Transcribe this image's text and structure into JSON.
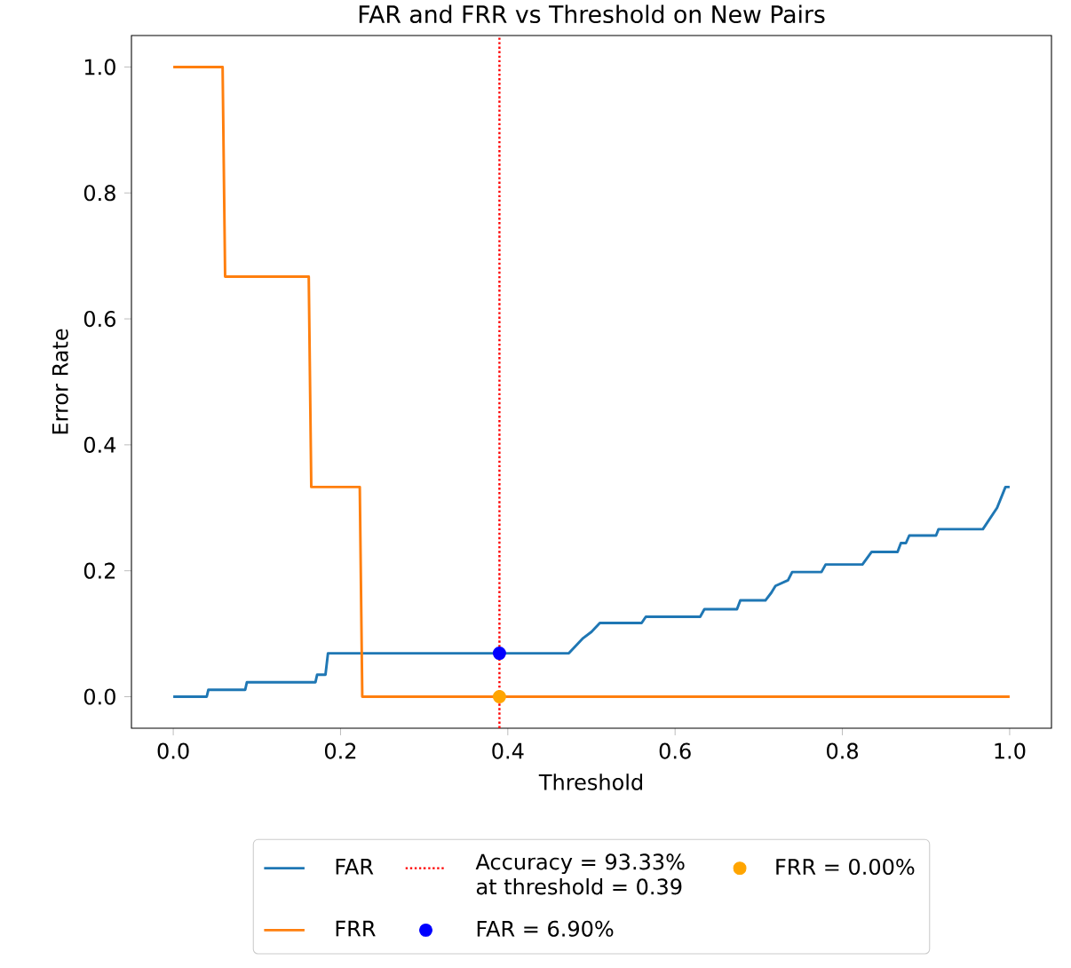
{
  "chart_data": {
    "type": "line",
    "title": "FAR and FRR vs Threshold on New Pairs",
    "xlabel": "Threshold",
    "ylabel": "Error Rate",
    "xlim": [
      -0.05,
      1.05
    ],
    "ylim": [
      -0.05,
      1.05
    ],
    "xticks": [
      {
        "value": 0,
        "label": "0.0"
      },
      {
        "value": 0.2,
        "label": "0.2"
      },
      {
        "value": 0.4,
        "label": "0.4"
      },
      {
        "value": 0.6,
        "label": "0.6"
      },
      {
        "value": 0.8,
        "label": "0.8"
      },
      {
        "value": 1,
        "label": "1.0"
      }
    ],
    "yticks": [
      {
        "value": 0,
        "label": "0.0"
      },
      {
        "value": 0.2,
        "label": "0.2"
      },
      {
        "value": 0.4,
        "label": "0.4"
      },
      {
        "value": 0.6,
        "label": "0.6"
      },
      {
        "value": 0.8,
        "label": "0.8"
      },
      {
        "value": 1,
        "label": "1.0"
      }
    ],
    "grid": false,
    "legend": "bottom",
    "series": [
      {
        "name": "FAR",
        "color": "#1f77b4",
        "x": [
          0,
          0.04,
          0.042,
          0.086,
          0.088,
          0.17,
          0.172,
          0.182,
          0.185,
          0.473,
          0.48,
          0.49,
          0.5,
          0.51,
          0.56,
          0.565,
          0.63,
          0.635,
          0.674,
          0.678,
          0.708,
          0.715,
          0.72,
          0.735,
          0.74,
          0.775,
          0.78,
          0.824,
          0.83,
          0.835,
          0.866,
          0.87,
          0.876,
          0.88,
          0.912,
          0.915,
          0.968,
          0.985,
          0.995,
          1.0
        ],
        "values": [
          0,
          0,
          0.011,
          0.011,
          0.023,
          0.023,
          0.035,
          0.035,
          0.069,
          0.069,
          0.079,
          0.093,
          0.103,
          0.117,
          0.117,
          0.127,
          0.127,
          0.139,
          0.139,
          0.153,
          0.153,
          0.165,
          0.176,
          0.185,
          0.198,
          0.198,
          0.21,
          0.21,
          0.221,
          0.23,
          0.23,
          0.244,
          0.244,
          0.256,
          0.256,
          0.266,
          0.266,
          0.3,
          0.333,
          0.333
        ]
      },
      {
        "name": "FRR",
        "color": "#ff7f0e",
        "x": [
          0,
          0.059,
          0.062,
          0.162,
          0.165,
          0.223,
          0.226,
          1.0
        ],
        "values": [
          1,
          1,
          0.667,
          0.667,
          0.333,
          0.333,
          0,
          0
        ]
      },
      {
        "name": "FAR = 6.90%",
        "color": "#0000ff",
        "type": "scatter",
        "marker": "circle",
        "x": [
          0.39
        ],
        "values": [
          0.069
        ]
      },
      {
        "name": "FRR = 0.00%",
        "color": "#ffa500",
        "type": "scatter",
        "marker": "circle",
        "x": [
          0.39
        ],
        "values": [
          0
        ]
      }
    ],
    "ref_lines": [
      {
        "axis": "x",
        "value": 0.39,
        "label": "Accuracy = 93.33% at threshold = 0.39",
        "color": "#ff0000",
        "line_style": "dotted"
      }
    ]
  }
}
